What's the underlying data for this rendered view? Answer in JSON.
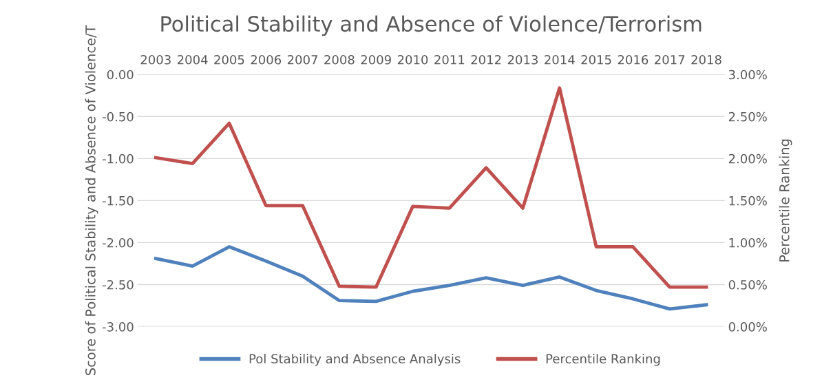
{
  "chart_data": {
    "type": "line",
    "title": "Political Stability and Absence of Violence/Terrorism",
    "ylabel": "Score of Political Stability and Absence of Violence/T",
    "y2label": "Percentile Ranking",
    "categories": [
      "2003",
      "2004",
      "2005",
      "2006",
      "2007",
      "2008",
      "2009",
      "2010",
      "2011",
      "2012",
      "2013",
      "2014",
      "2015",
      "2016",
      "2017",
      "2018"
    ],
    "series": [
      {
        "name": "Pol Stability and Absence Analysis",
        "color": "#4f81bd",
        "values": [
          -2.19,
          -2.28,
          -2.05,
          -2.22,
          -2.4,
          -2.69,
          -2.7,
          -2.58,
          -2.51,
          -2.42,
          -2.51,
          -2.41,
          -2.57,
          -2.67,
          -2.79,
          -2.74
        ]
      },
      {
        "name": "Percentile Ranking",
        "color": "#c0504d",
        "axis": "y2",
        "values": [
          2.01,
          1.94,
          2.42,
          1.44,
          1.44,
          0.48,
          0.47,
          1.43,
          1.41,
          1.89,
          1.41,
          2.84,
          0.95,
          0.95,
          0.47,
          0.47
        ]
      }
    ],
    "ylim": [
      -3,
      0
    ],
    "yticks": [
      {
        "value": -3,
        "label": "-3.00"
      },
      {
        "value": -2.5,
        "label": "-2.50"
      },
      {
        "value": -2,
        "label": "-2.00"
      },
      {
        "value": -1.5,
        "label": "-1.50"
      },
      {
        "value": -1,
        "label": "-1.00"
      },
      {
        "value": -0.5,
        "label": "-0.50"
      },
      {
        "value": 0,
        "label": "0.00"
      }
    ],
    "y2lim": [
      0,
      3
    ],
    "y2ticks": [
      {
        "value": 0,
        "label": "0.00%"
      },
      {
        "value": 0.5,
        "label": "0.50%"
      },
      {
        "value": 1,
        "label": "1.00%"
      },
      {
        "value": 1.5,
        "label": "1.50%"
      },
      {
        "value": 2,
        "label": "2.00%"
      },
      {
        "value": 2.5,
        "label": "2.50%"
      },
      {
        "value": 3,
        "label": "3.00%"
      }
    ],
    "grid": "y",
    "legend": "bottom",
    "marker": "none",
    "line_style": "solid"
  }
}
